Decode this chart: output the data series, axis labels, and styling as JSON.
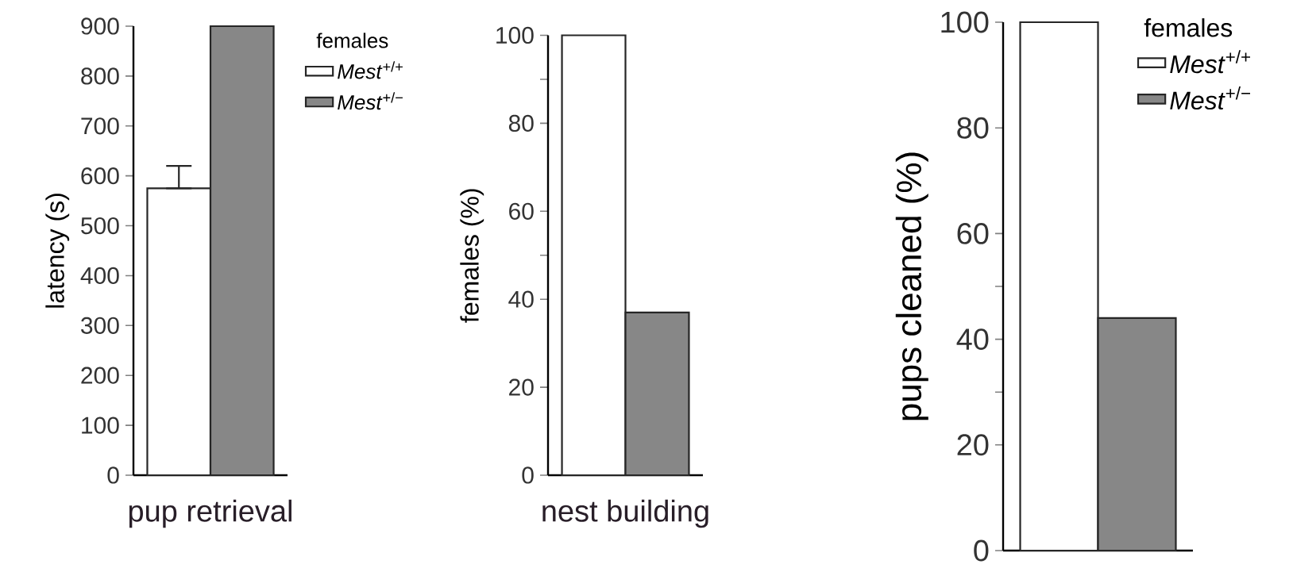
{
  "chart_data": [
    {
      "type": "bar",
      "xlabel": "pup retrieval",
      "ylabel": "latency  (s)",
      "legend_title": "females",
      "legend": "top right",
      "categories": [
        null
      ],
      "ylim": [
        0,
        900
      ],
      "yticks": [
        0,
        100,
        200,
        300,
        400,
        500,
        600,
        700,
        800,
        900
      ],
      "series": [
        {
          "name": "*Mest*$^{+/+}$",
          "color": "#ffffff",
          "values": [
            575
          ],
          "errors": [
            [
              575,
              620
            ]
          ]
        },
        {
          "name": "*Mest*$^{+/−}$",
          "color": "#878787",
          "values": [
            900
          ]
        }
      ]
    },
    {
      "type": "bar",
      "xlabel": "nest building",
      "ylabel": "females (%)",
      "categories": [
        null
      ],
      "ylim": [
        0,
        100
      ],
      "yticks": [
        0,
        20,
        40,
        {
          "value": 50,
          "label": null
        },
        60,
        80,
        {
          "value": 90,
          "label": null
        },
        100
      ],
      "series": [
        {
          "color": "#ffffff",
          "values": [
            100
          ]
        },
        {
          "color": "#878787",
          "values": [
            37
          ]
        }
      ]
    },
    {
      "type": "bar",
      "ylabel": "pups  cleaned  (%)",
      "legend_title": "females",
      "legend": "top right",
      "categories": [
        null
      ],
      "ylim": [
        0,
        100
      ],
      "yticks": [
        0,
        20,
        {
          "value": 30,
          "label": null
        },
        40,
        {
          "value": 50,
          "label": null
        },
        60,
        80,
        100
      ],
      "series": [
        {
          "name": "*Mest*$^{+/+}$",
          "color": "#ffffff",
          "values": [
            100
          ]
        },
        {
          "name": "*Mest*$^{+/−}$",
          "color": "#878787",
          "values": [
            44
          ]
        }
      ]
    }
  ]
}
